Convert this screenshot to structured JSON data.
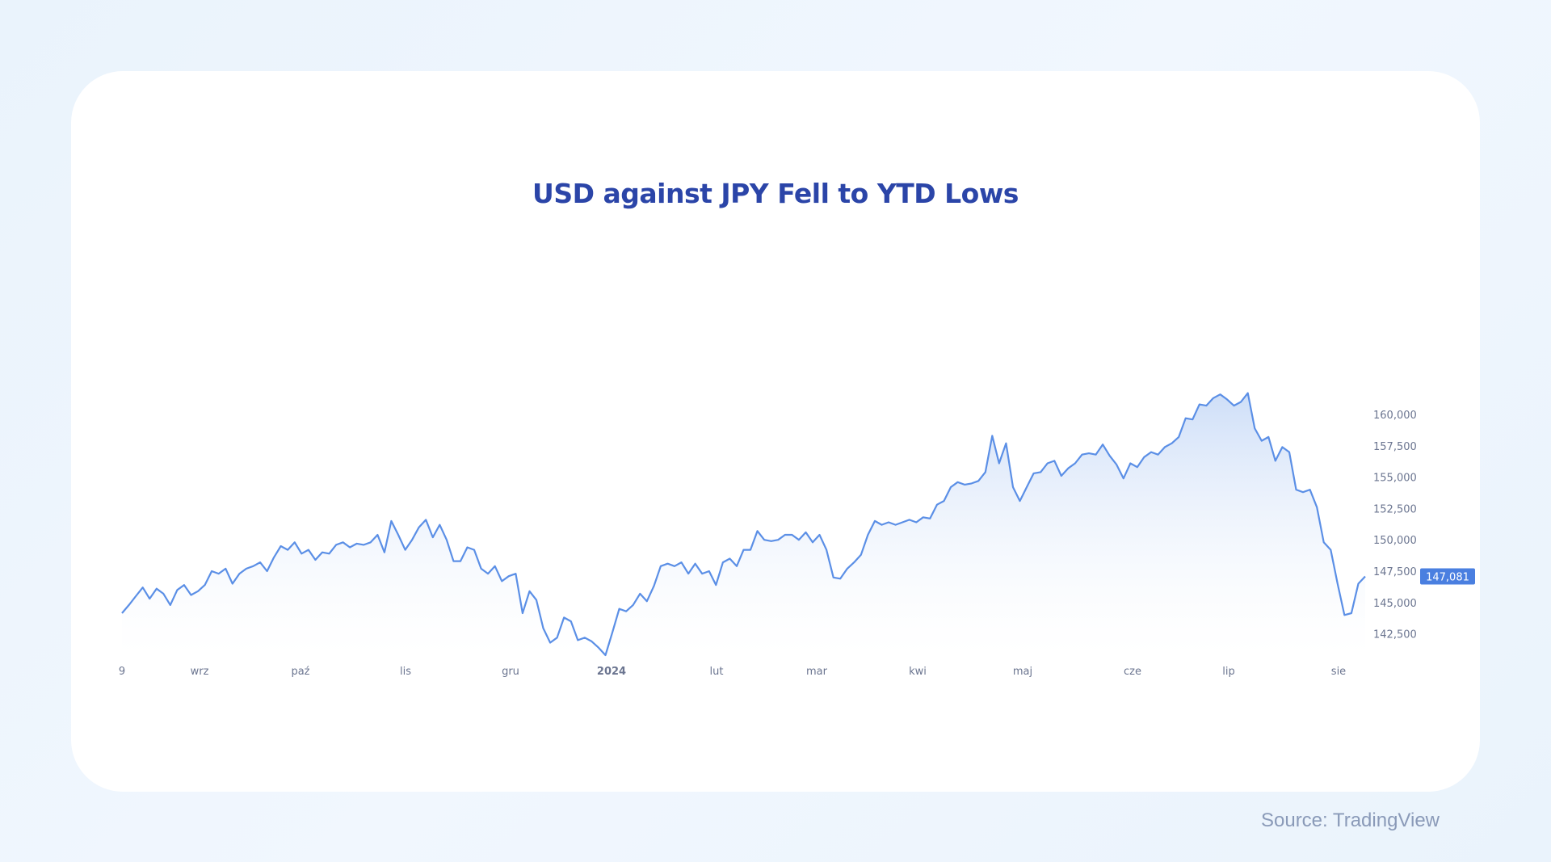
{
  "title": "USD against JPY Fell to YTD Lows",
  "source": "Source: TradingView",
  "chart_data": {
    "type": "area",
    "title": "USD against JPY Fell to YTD Lows",
    "x_tick_labels": [
      "9",
      "wrz",
      "paź",
      "lis",
      "gru",
      "2024",
      "lut",
      "mar",
      "kwi",
      "maj",
      "cze",
      "lip",
      "sie"
    ],
    "y_tick_labels": [
      "160,000",
      "157,500",
      "155,000",
      "152,500",
      "150,000",
      "147,500",
      "145,000",
      "142,500"
    ],
    "y_ticks": [
      160000,
      157500,
      155000,
      152500,
      150000,
      147500,
      145000,
      142500
    ],
    "ylim": [
      140500,
      162500
    ],
    "grid": false,
    "last_value": 147081,
    "last_value_label": "147,081",
    "colors": {
      "line": "#5b8fe6",
      "fill_top": "#c9dbf7",
      "badge": "#4a7fe0",
      "title": "#2b45a8"
    },
    "values": [
      144150,
      144800,
      145500,
      146200,
      145300,
      146100,
      145700,
      144800,
      146000,
      146400,
      145600,
      145900,
      146400,
      147500,
      147300,
      147700,
      146500,
      147300,
      147700,
      147900,
      148200,
      147500,
      148600,
      149500,
      149200,
      149800,
      148900,
      149200,
      148400,
      149000,
      148900,
      149600,
      149800,
      149400,
      149700,
      149600,
      149800,
      150400,
      149000,
      151500,
      150400,
      149200,
      150000,
      151000,
      151600,
      150200,
      151200,
      150000,
      148300,
      148300,
      149400,
      149200,
      147700,
      147300,
      147900,
      146700,
      147100,
      147300,
      144150,
      145900,
      145200,
      142950,
      141800,
      142200,
      143800,
      143500,
      142000,
      142200,
      141900,
      141400,
      140800,
      142600,
      144500,
      144300,
      144800,
      145700,
      145100,
      146300,
      147900,
      148100,
      147900,
      148200,
      147300,
      148100,
      147300,
      147500,
      146400,
      148200,
      148500,
      147900,
      149200,
      149200,
      150700,
      150000,
      149900,
      150000,
      150400,
      150400,
      150000,
      150600,
      149800,
      150400,
      149200,
      147000,
      146900,
      147700,
      148200,
      148800,
      150400,
      151500,
      151200,
      151400,
      151200,
      151400,
      151600,
      151400,
      151800,
      151700,
      152800,
      153100,
      154200,
      154600,
      154400,
      154500,
      154700,
      155400,
      158300,
      156100,
      157700,
      154200,
      153100,
      154200,
      155300,
      155400,
      156100,
      156300,
      155100,
      155700,
      156100,
      156800,
      156900,
      156800,
      157600,
      156700,
      156000,
      154900,
      156100,
      155800,
      156600,
      157000,
      156800,
      157400,
      157700,
      158200,
      159700,
      159600,
      160800,
      160700,
      161300,
      161600,
      161200,
      160700,
      161000,
      161700,
      158900,
      157900,
      158200,
      156300,
      157400,
      157000,
      154000,
      153800,
      154000,
      152600,
      149800,
      149200,
      146500,
      144000,
      144150,
      146500,
      147081
    ]
  }
}
